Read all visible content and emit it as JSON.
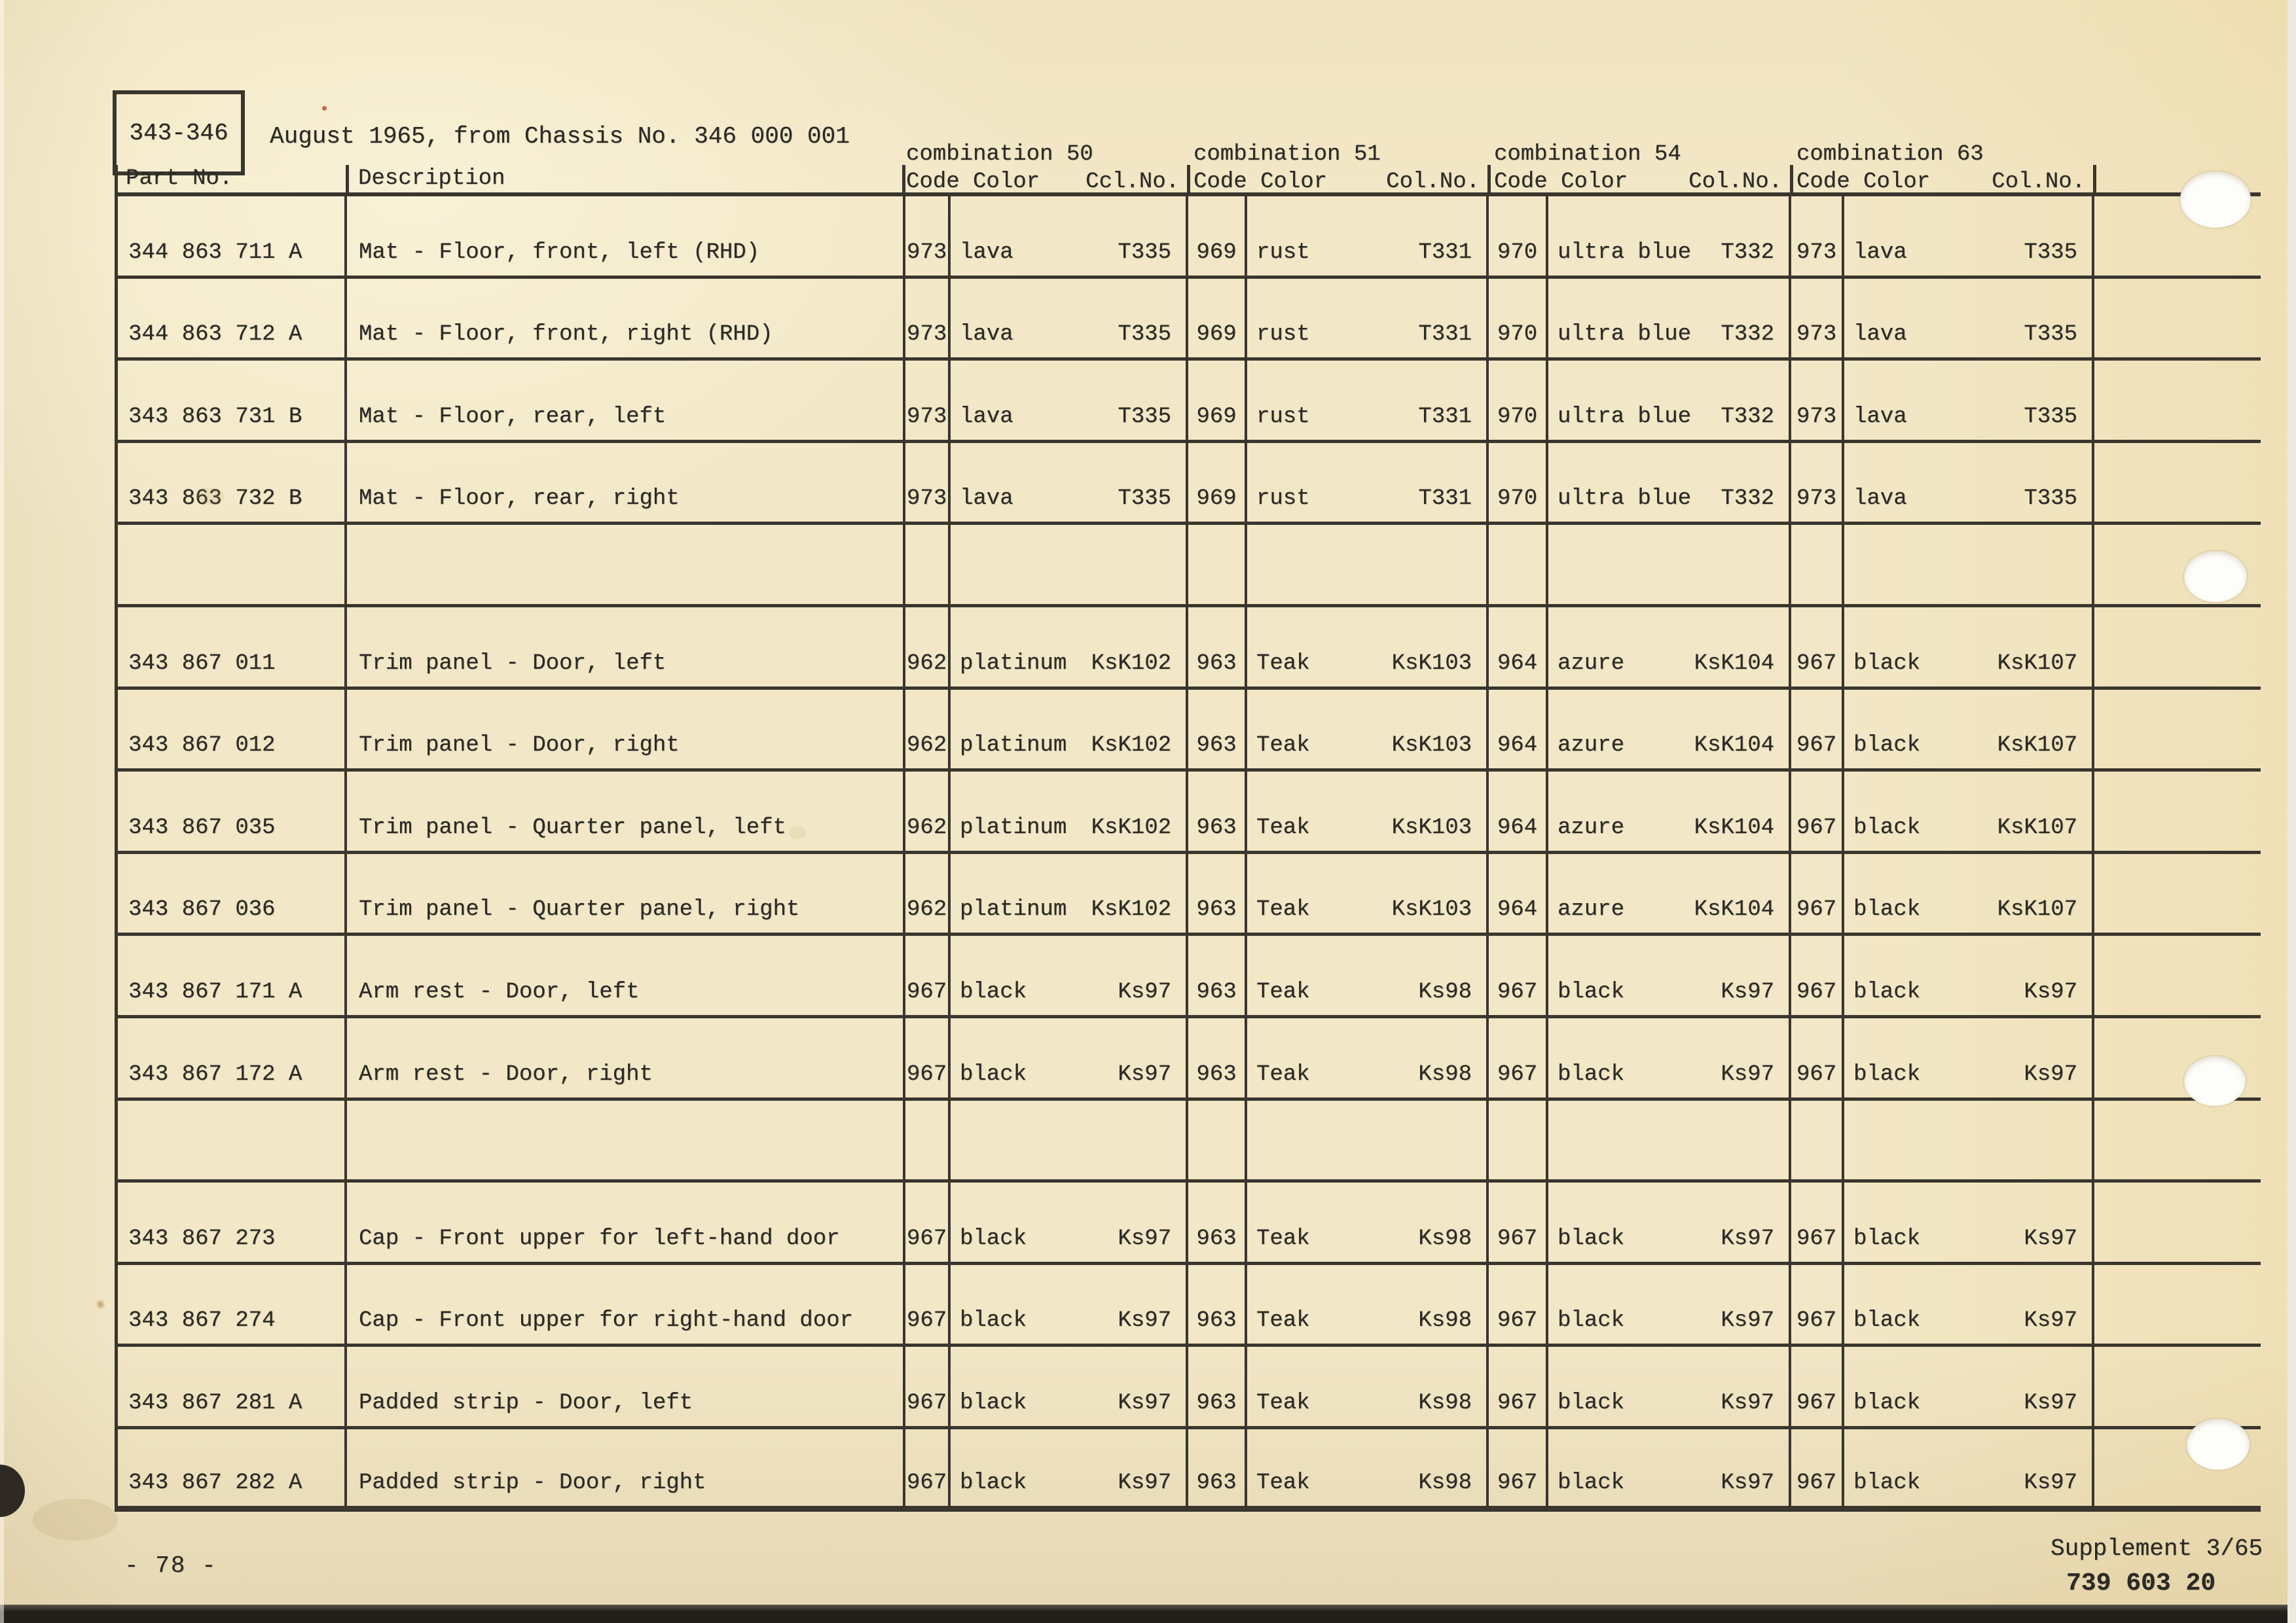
{
  "colors": {
    "paper": "#f2e7c6",
    "ink": "#2c2a25",
    "table_line": "#3a362e"
  },
  "page": {
    "ref_label": "343-346",
    "header_note": "August 1965, from Chassis No. 346 000 001",
    "page_number": "- 78 -",
    "supplement": "Supplement 3/65",
    "catalog_number": "739 603 20"
  },
  "table": {
    "part_header": "Part No.",
    "description_header": "Description",
    "groups": [
      {
        "title": "combination 50",
        "code_color": "Code Color",
        "col_no": "Ccl.No."
      },
      {
        "title": "combination 51",
        "code_color": "Code Color",
        "col_no": "Col.No."
      },
      {
        "title": "combination 54",
        "code_color": "Code Color",
        "col_no": "Col.No."
      },
      {
        "title": "combination 63",
        "code_color": "Code Color",
        "col_no": "Col.No."
      }
    ],
    "rows": [
      {
        "part": "344 863 711 A",
        "desc": "Mat - Floor, front, left (RHD)",
        "combs": [
          {
            "code": "973",
            "color": "lava",
            "col_no": "T335"
          },
          {
            "code": "969",
            "color": "rust",
            "col_no": "T331"
          },
          {
            "code": "970",
            "color": "ultra blue",
            "col_no": "T332"
          },
          {
            "code": "973",
            "color": "lava",
            "col_no": "T335"
          }
        ]
      },
      {
        "part": "344 863 712 A",
        "desc": "Mat - Floor, front, right (RHD)",
        "combs": [
          {
            "code": "973",
            "color": "lava",
            "col_no": "T335"
          },
          {
            "code": "969",
            "color": "rust",
            "col_no": "T331"
          },
          {
            "code": "970",
            "color": "ultra blue",
            "col_no": "T332"
          },
          {
            "code": "973",
            "color": "lava",
            "col_no": "T335"
          }
        ]
      },
      {
        "part": "343 863 731 B",
        "desc": "Mat - Floor, rear, left",
        "combs": [
          {
            "code": "973",
            "color": "lava",
            "col_no": "T335"
          },
          {
            "code": "969",
            "color": "rust",
            "col_no": "T331"
          },
          {
            "code": "970",
            "color": "ultra blue",
            "col_no": "T332"
          },
          {
            "code": "973",
            "color": "lava",
            "col_no": "T335"
          }
        ]
      },
      {
        "part": "343 863 732 B",
        "desc": "Mat - Floor, rear, right",
        "combs": [
          {
            "code": "973",
            "color": "lava",
            "col_no": "T335"
          },
          {
            "code": "969",
            "color": "rust",
            "col_no": "T331"
          },
          {
            "code": "970",
            "color": "ultra blue",
            "col_no": "T332"
          },
          {
            "code": "973",
            "color": "lava",
            "col_no": "T335"
          }
        ]
      },
      {
        "part": "",
        "desc": "",
        "combs": []
      },
      {
        "part": "343 867 011",
        "desc": "Trim panel - Door, left",
        "combs": [
          {
            "code": "962",
            "color": "platinum",
            "col_no": "KsK102"
          },
          {
            "code": "963",
            "color": "Teak",
            "col_no": "KsK103"
          },
          {
            "code": "964",
            "color": "azure",
            "col_no": "KsK104"
          },
          {
            "code": "967",
            "color": "black",
            "col_no": "KsK107"
          }
        ]
      },
      {
        "part": "343 867 012",
        "desc": "Trim panel - Door, right",
        "combs": [
          {
            "code": "962",
            "color": "platinum",
            "col_no": "KsK102"
          },
          {
            "code": "963",
            "color": "Teak",
            "col_no": "KsK103"
          },
          {
            "code": "964",
            "color": "azure",
            "col_no": "KsK104"
          },
          {
            "code": "967",
            "color": "black",
            "col_no": "KsK107"
          }
        ]
      },
      {
        "part": "343 867 035",
        "desc": "Trim panel - Quarter panel, left",
        "combs": [
          {
            "code": "962",
            "color": "platinum",
            "col_no": "KsK102"
          },
          {
            "code": "963",
            "color": "Teak",
            "col_no": "KsK103"
          },
          {
            "code": "964",
            "color": "azure",
            "col_no": "KsK104"
          },
          {
            "code": "967",
            "color": "black",
            "col_no": "KsK107"
          }
        ]
      },
      {
        "part": "343 867 036",
        "desc": "Trim panel - Quarter panel, right",
        "combs": [
          {
            "code": "962",
            "color": "platinum",
            "col_no": "KsK102"
          },
          {
            "code": "963",
            "color": "Teak",
            "col_no": "KsK103"
          },
          {
            "code": "964",
            "color": "azure",
            "col_no": "KsK104"
          },
          {
            "code": "967",
            "color": "black",
            "col_no": "KsK107"
          }
        ]
      },
      {
        "part": "343 867 171 A",
        "desc": "Arm rest - Door, left",
        "combs": [
          {
            "code": "967",
            "color": "black",
            "col_no": "Ks97"
          },
          {
            "code": "963",
            "color": "Teak",
            "col_no": "Ks98"
          },
          {
            "code": "967",
            "color": "black",
            "col_no": "Ks97"
          },
          {
            "code": "967",
            "color": "black",
            "col_no": "Ks97"
          }
        ]
      },
      {
        "part": "343 867 172 A",
        "desc": "Arm rest - Door, right",
        "combs": [
          {
            "code": "967",
            "color": "black",
            "col_no": "Ks97"
          },
          {
            "code": "963",
            "color": "Teak",
            "col_no": "Ks98"
          },
          {
            "code": "967",
            "color": "black",
            "col_no": "Ks97"
          },
          {
            "code": "967",
            "color": "black",
            "col_no": "Ks97"
          }
        ]
      },
      {
        "part": "",
        "desc": "",
        "combs": []
      },
      {
        "part": "343 867 273",
        "desc": "Cap - Front upper for left-hand door",
        "combs": [
          {
            "code": "967",
            "color": "black",
            "col_no": "Ks97"
          },
          {
            "code": "963",
            "color": "Teak",
            "col_no": "Ks98"
          },
          {
            "code": "967",
            "color": "black",
            "col_no": "Ks97"
          },
          {
            "code": "967",
            "color": "black",
            "col_no": "Ks97"
          }
        ]
      },
      {
        "part": "343 867 274",
        "desc": "Cap - Front upper for right-hand door",
        "combs": [
          {
            "code": "967",
            "color": "black",
            "col_no": "Ks97"
          },
          {
            "code": "963",
            "color": "Teak",
            "col_no": "Ks98"
          },
          {
            "code": "967",
            "color": "black",
            "col_no": "Ks97"
          },
          {
            "code": "967",
            "color": "black",
            "col_no": "Ks97"
          }
        ]
      },
      {
        "part": "343 867 281 A",
        "desc": "Padded strip - Door, left",
        "combs": [
          {
            "code": "967",
            "color": "black",
            "col_no": "Ks97"
          },
          {
            "code": "963",
            "color": "Teak",
            "col_no": "Ks98"
          },
          {
            "code": "967",
            "color": "black",
            "col_no": "Ks97"
          },
          {
            "code": "967",
            "color": "black",
            "col_no": "Ks97"
          }
        ]
      },
      {
        "part": "343 867 282 A",
        "desc": "Padded strip - Door, right",
        "combs": [
          {
            "code": "967",
            "color": "black",
            "col_no": "Ks97"
          },
          {
            "code": "963",
            "color": "Teak",
            "col_no": "Ks98"
          },
          {
            "code": "967",
            "color": "black",
            "col_no": "Ks97"
          },
          {
            "code": "967",
            "color": "black",
            "col_no": "Ks97"
          }
        ]
      }
    ]
  }
}
